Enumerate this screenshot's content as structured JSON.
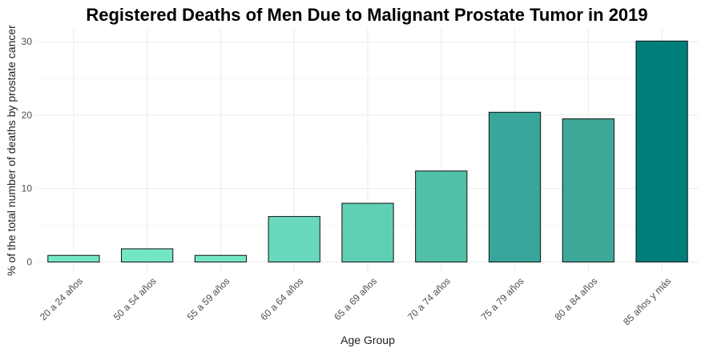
{
  "chart_data": {
    "type": "bar",
    "title": "Registered Deaths of Men Due to Malignant Prostate Tumor in 2019",
    "xlabel": "Age Group",
    "ylabel": "% of the total number of deaths by prostate cancer",
    "categories": [
      "20 a 24 años",
      "50 a 54 años",
      "55 a 59 años",
      "60 a 64 años",
      "65 a 69 años",
      "70 a 74 años",
      "75 a 79 años",
      "80 a 84 años",
      "85 años y más"
    ],
    "values": [
      0.9,
      1.8,
      0.9,
      6.2,
      8.0,
      12.4,
      20.4,
      19.5,
      30.1
    ],
    "ylim": [
      0,
      32
    ],
    "yticks": [
      0,
      10,
      20,
      30
    ],
    "grid": true,
    "colors": [
      "#74e6c6",
      "#74e6c6",
      "#74e6c6",
      "#68d9bd",
      "#5fcfb3",
      "#52c0a7",
      "#38a69a",
      "#3ea898",
      "#007e7c"
    ]
  }
}
